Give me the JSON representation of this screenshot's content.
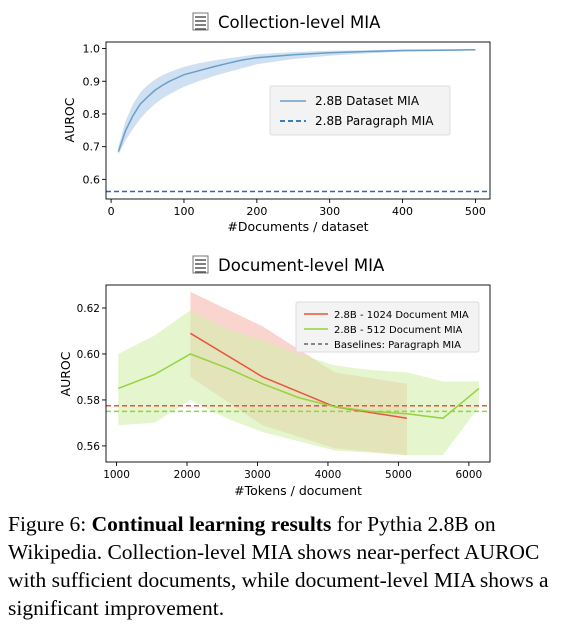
{
  "chart_data": [
    {
      "type": "line",
      "title": "Collection-level MIA",
      "title_icon": "document-stack-icon",
      "xlabel": "#Documents / dataset",
      "ylabel": "AUROC",
      "xlim": [
        -7,
        520
      ],
      "ylim": [
        0.54,
        1.02
      ],
      "xticks": [
        0,
        100,
        200,
        300,
        400,
        500
      ],
      "yticks": [
        0.6,
        0.7,
        0.8,
        0.9,
        1.0
      ],
      "ytick_labels": [
        "0.6",
        "0.7",
        "0.8",
        "0.9",
        "1.0"
      ],
      "grid": false,
      "legend_position": "center-right",
      "series": [
        {
          "name": "2.8B Dataset MIA",
          "color": "#6a9ec9",
          "line_style": "solid",
          "x": [
            10,
            20,
            30,
            40,
            50,
            60,
            70,
            80,
            90,
            100,
            120,
            140,
            160,
            180,
            200,
            250,
            300,
            350,
            400,
            450,
            500
          ],
          "y": [
            0.685,
            0.75,
            0.795,
            0.83,
            0.852,
            0.872,
            0.887,
            0.9,
            0.91,
            0.92,
            0.932,
            0.944,
            0.955,
            0.965,
            0.972,
            0.981,
            0.987,
            0.991,
            0.994,
            0.995,
            0.996
          ],
          "band_low": [
            0.675,
            0.72,
            0.755,
            0.785,
            0.81,
            0.83,
            0.847,
            0.86,
            0.872,
            0.883,
            0.9,
            0.915,
            0.928,
            0.94,
            0.952,
            0.968,
            0.978,
            0.985,
            0.99,
            0.992,
            0.994
          ],
          "band_high": [
            0.7,
            0.78,
            0.83,
            0.865,
            0.888,
            0.905,
            0.918,
            0.928,
            0.936,
            0.944,
            0.955,
            0.963,
            0.97,
            0.976,
            0.982,
            0.989,
            0.993,
            0.995,
            0.997,
            0.998,
            0.998
          ],
          "band_color": "#bdd6ec"
        },
        {
          "name": "2.8B Paragraph MIA",
          "color": "#1f6fb4",
          "line_style": "dashed",
          "baseline_y": 0.563
        }
      ]
    },
    {
      "type": "line",
      "title": "Document-level MIA",
      "title_icon": "document-lines-icon",
      "xlabel": "#Tokens / document",
      "ylabel": "AUROC",
      "xlim": [
        850,
        6300
      ],
      "ylim": [
        0.553,
        0.63
      ],
      "xticks": [
        1000,
        2000,
        3000,
        4000,
        5000,
        6000
      ],
      "yticks": [
        0.56,
        0.58,
        0.6,
        0.62
      ],
      "ytick_labels": [
        "0.56",
        "0.58",
        "0.60",
        "0.62"
      ],
      "grid": false,
      "legend_position": "top-right",
      "series": [
        {
          "name": "2.8B - 1024 Document MIA",
          "color": "#e8553e",
          "line_style": "solid",
          "x": [
            2048,
            3072,
            4096,
            5120
          ],
          "y": [
            0.609,
            0.59,
            0.577,
            0.572
          ],
          "band_low": [
            0.59,
            0.569,
            0.559,
            0.556
          ],
          "band_high": [
            0.627,
            0.612,
            0.592,
            0.587
          ],
          "band_color": "#f6b8ad",
          "baseline_y": 0.5775
        },
        {
          "name": "2.8B - 512 Document MIA",
          "color": "#95d340",
          "line_style": "solid",
          "x": [
            1024,
            1536,
            2048,
            2560,
            3072,
            3584,
            4096,
            4608,
            5120,
            5632,
            6144
          ],
          "y": [
            0.585,
            0.591,
            0.6,
            0.594,
            0.587,
            0.581,
            0.577,
            0.575,
            0.574,
            0.572,
            0.585
          ],
          "band_low": [
            0.569,
            0.57,
            0.58,
            0.572,
            0.566,
            0.562,
            0.558,
            0.557,
            0.556,
            0.556,
            0.577
          ],
          "band_high": [
            0.6,
            0.608,
            0.619,
            0.611,
            0.606,
            0.6,
            0.595,
            0.593,
            0.592,
            0.588,
            0.588
          ],
          "band_color": "#d3eeae",
          "baseline_y": 0.575
        },
        {
          "name": "Baselines: Paragraph MIA",
          "color": "#444444",
          "line_style": "dashed"
        }
      ]
    }
  ],
  "caption": {
    "figure_label": "Figure 6: ",
    "bold_text": "Continual learning results",
    "rest_text": " for Pythia 2.8B on Wikipedia. Collection-level MIA shows near-perfect AUROC with sufficient documents, while document-level MIA shows a significant improvement."
  }
}
